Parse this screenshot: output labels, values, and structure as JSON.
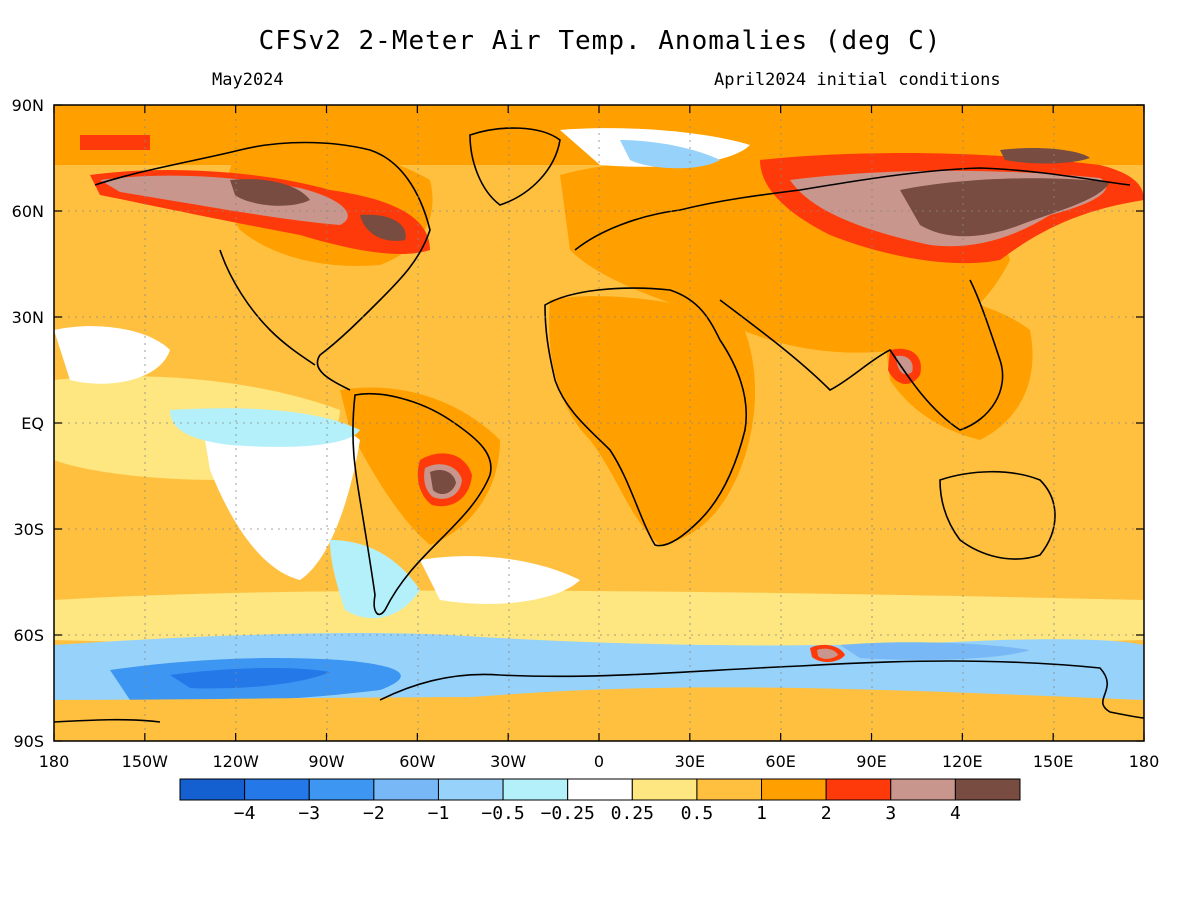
{
  "title": "CFSv2 2-Meter Air Temp. Anomalies (deg C)",
  "valid_month": "May2024",
  "initial_conditions": "April2024 initial conditions",
  "lon_ticks": [
    "180",
    "150W",
    "120W",
    "90W",
    "60W",
    "30W",
    "0",
    "30E",
    "60E",
    "90E",
    "120E",
    "150E",
    "180"
  ],
  "lat_ticks": [
    "90N",
    "60N",
    "30N",
    "EQ",
    "30S",
    "60S",
    "90S"
  ],
  "colorbar": {
    "colors": [
      "#1560d0",
      "#2478e8",
      "#3c96f2",
      "#78b8f6",
      "#96d2fa",
      "#b4f0fa",
      "#ffffff",
      "#fee680",
      "#ffc040",
      "#ffa000",
      "#ff3a0a",
      "#c8968c",
      "#784c40"
    ],
    "labels": [
      "−4",
      "−3",
      "−2",
      "−1",
      "−0.5",
      "−0.25",
      "0.25",
      "0.5",
      "1",
      "2",
      "3",
      "4"
    ]
  },
  "colors": {
    "map_base": "#ffc040",
    "ocean_warm": "#fee680",
    "coastline": "#000000"
  }
}
